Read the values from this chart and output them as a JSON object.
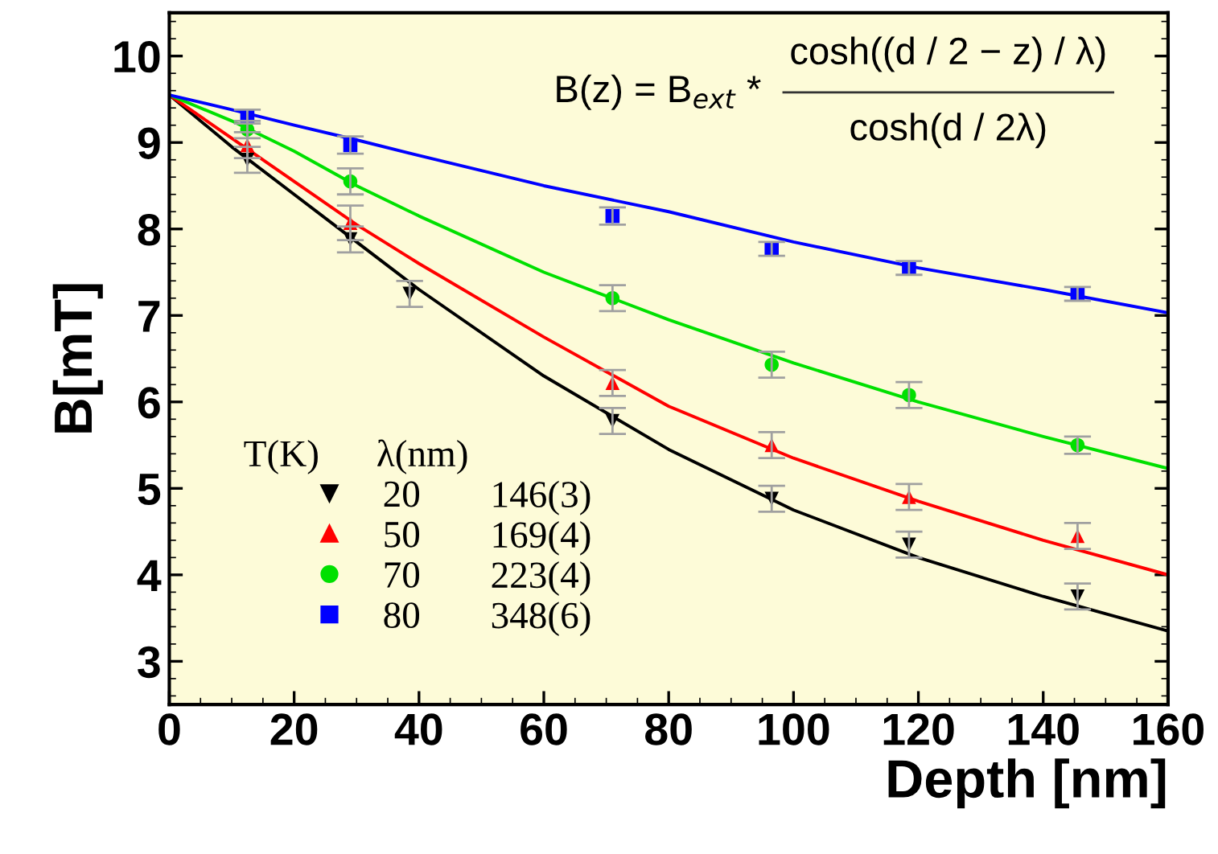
{
  "chart_data": {
    "type": "scatter",
    "xlabel": "Depth [nm]",
    "ylabel": "B[mT]",
    "xlim": [
      0,
      160
    ],
    "xticks": [
      0,
      20,
      40,
      60,
      80,
      100,
      120,
      140,
      160
    ],
    "ylim": [
      2.5,
      10.5
    ],
    "yticks": [
      3,
      4,
      5,
      6,
      7,
      8,
      9,
      10
    ],
    "grid": false,
    "legend": "bottom left",
    "legend_title": "T(K)      λ(nm)",
    "annotations": [
      "B(z) = B$_{ext}$ *",
      "cosh((d / 2 − z) / λ)",
      "cosh(d / 2λ)",
      "146(3)",
      "169(4)",
      "223(4)",
      "348(6)"
    ],
    "series": [
      {
        "name": "20",
        "marker": "triangle_down",
        "color": "#000000",
        "x": [
          12.5,
          29,
          38.5,
          71,
          96.5,
          118.5,
          145.5
        ],
        "values": [
          8.8,
          7.88,
          7.25,
          5.78,
          4.88,
          4.35,
          3.75
        ],
        "errors": [
          0.15,
          0.15,
          0.15,
          0.15,
          0.15,
          0.15,
          0.15
        ]
      },
      {
        "name": "50",
        "marker": "triangle",
        "color": "#ff0000",
        "x": [
          12.5,
          29,
          71,
          96.5,
          118.5,
          145.5
        ],
        "values": [
          8.97,
          8.07,
          6.22,
          5.5,
          4.9,
          4.45
        ],
        "errors": [
          0.15,
          0.2,
          0.15,
          0.15,
          0.15,
          0.15
        ]
      },
      {
        "name": "70",
        "marker": "circle",
        "color": "#00e000",
        "x": [
          12.5,
          29,
          71,
          96.5,
          118.5,
          145.5
        ],
        "values": [
          9.15,
          8.55,
          7.2,
          6.43,
          6.08,
          5.5
        ],
        "errors": [
          0.1,
          0.15,
          0.15,
          0.15,
          0.15,
          0.1
        ]
      },
      {
        "name": "80",
        "marker": "square",
        "color": "#0000ff",
        "x": [
          12.5,
          29,
          71,
          96.5,
          118.5,
          145.5
        ],
        "values": [
          9.3,
          8.97,
          8.15,
          7.77,
          7.55,
          7.25
        ],
        "errors": [
          0.08,
          0.1,
          0.1,
          0.08,
          0.08,
          0.08
        ]
      },
      {
        "type": "line",
        "color": "#000000",
        "x": [
          0,
          10,
          20,
          30,
          40,
          60,
          80,
          100,
          120,
          140,
          160
        ],
        "values": [
          9.55,
          8.95,
          8.4,
          7.85,
          7.3,
          6.3,
          5.45,
          4.75,
          4.2,
          3.75,
          3.35
        ]
      },
      {
        "type": "line",
        "color": "#ff0000",
        "x": [
          0,
          10,
          20,
          30,
          40,
          60,
          80,
          100,
          120,
          140,
          160
        ],
        "values": [
          9.55,
          9.05,
          8.55,
          8.05,
          7.6,
          6.75,
          5.95,
          5.35,
          4.85,
          4.4,
          4.0
        ]
      },
      {
        "type": "line",
        "color": "#00e000",
        "x": [
          0,
          10,
          20,
          30,
          40,
          60,
          80,
          100,
          120,
          140,
          160
        ],
        "values": [
          9.55,
          9.25,
          8.9,
          8.5,
          8.15,
          7.5,
          6.95,
          6.45,
          6.0,
          5.6,
          5.23
        ]
      },
      {
        "type": "line",
        "color": "#0000ff",
        "x": [
          0,
          10,
          20,
          30,
          40,
          60,
          80,
          100,
          120,
          140,
          160
        ],
        "values": [
          9.55,
          9.38,
          9.2,
          9.03,
          8.85,
          8.5,
          8.2,
          7.85,
          7.55,
          7.3,
          7.03
        ]
      }
    ]
  }
}
